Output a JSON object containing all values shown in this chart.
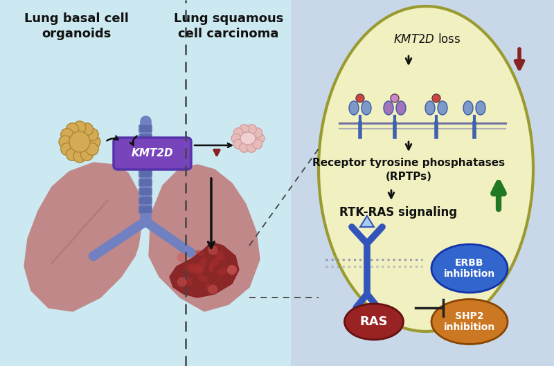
{
  "bg_left_color": "#cce8f0",
  "bg_right_color": "#c8d8e8",
  "cell_fill": "#f0f0c0",
  "cell_border": "#9a9a30",
  "title_left": "Lung basal cell\norganoids",
  "title_right": "Lung squamous\ncell carcinoma",
  "kmt2d_label": "KMT2D",
  "kmt2d_bg": "#7744bb",
  "kmt2d_text_color": "#ffffff",
  "label_kmt2d_loss": "KMT2D loss",
  "label_rptps_line1": "Receptor tyrosine phosphatases",
  "label_rptps_line2": "(RPTPs)",
  "label_rtk_ras": "RTK-RAS signaling",
  "label_ras": "RAS",
  "label_ras_color": "#992222",
  "label_erbb": "ERBB\ninhibition",
  "label_erbb_color": "#3366cc",
  "label_shp2": "SHP2\ninhibition",
  "label_shp2_color": "#cc7722",
  "arrow_color": "#111111",
  "red_arrow_color": "#882222",
  "green_arrow_color": "#227722",
  "lung_color": "#c08888",
  "lung_shadow": "#a87070",
  "tumor_color": "#882222",
  "organoid_color": "#d4aa55",
  "organoid_border": "#aa8833",
  "pink_cell_color": "#e8b8b8",
  "trachea_color": "#7080c0",
  "trachea_ring": "#5868a8",
  "divider_color": "#444444",
  "dashed_color": "#444444"
}
